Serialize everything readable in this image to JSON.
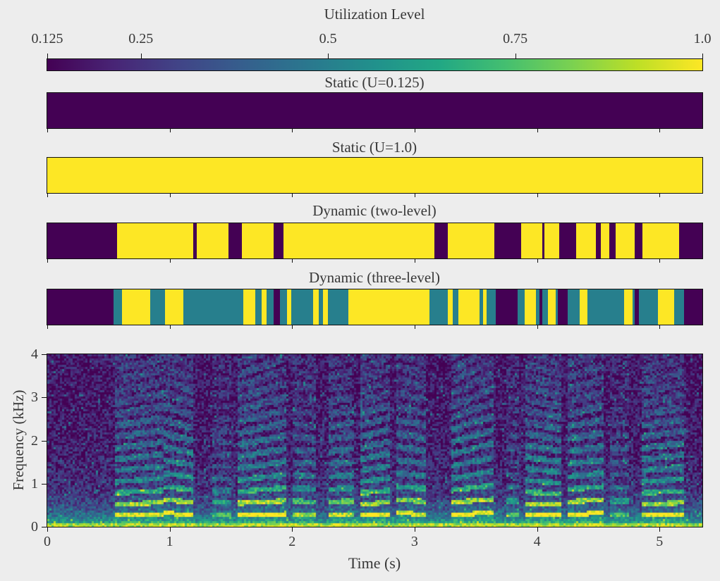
{
  "figure": {
    "background": "#ededed"
  },
  "colors": {
    "background": "#ededed",
    "spine": "#111111",
    "text": "#383838",
    "level_low": "#440154",
    "level_mid": "#27808e",
    "level_high": "#fde725",
    "viridis": [
      "#440154",
      "#482475",
      "#414487",
      "#355f8d",
      "#2a788e",
      "#21918c",
      "#22a884",
      "#44bf70",
      "#7ad151",
      "#bddf26",
      "#fde725"
    ]
  },
  "colorbar": {
    "title": "Utilization Level",
    "vmin": 0.125,
    "vmax": 1.0,
    "colormap": "viridis",
    "ticks": [
      {
        "v": 0.125,
        "label": "0.125"
      },
      {
        "v": 0.25,
        "label": "0.25"
      },
      {
        "v": 0.5,
        "label": "0.5"
      },
      {
        "v": 0.75,
        "label": "0.75"
      },
      {
        "v": 1.0,
        "label": "1.0"
      }
    ]
  },
  "time_axis": {
    "t_max": 5.35,
    "ticks": [
      0,
      1,
      2,
      3,
      4,
      5
    ]
  },
  "spectrogram": {
    "xlabel": "Time (s)",
    "ylabel": "Frequency (kHz)",
    "x_tick_labels": [
      "0",
      "1",
      "2",
      "3",
      "4",
      "5"
    ],
    "y_tick_labels": [
      "0",
      "1",
      "2",
      "3",
      "4"
    ],
    "f_max_khz": 4,
    "activity_bursts": [
      {
        "t0": 0.55,
        "t1": 0.95,
        "pitch": 0.26,
        "slope": 0.05,
        "strength": 0.9
      },
      {
        "t0": 0.95,
        "t1": 1.2,
        "pitch": 0.31,
        "slope": -0.1,
        "strength": 1.0
      },
      {
        "t0": 1.35,
        "t1": 1.5,
        "pitch": 0.28,
        "slope": 0.0,
        "strength": 0.5
      },
      {
        "t0": 1.55,
        "t1": 1.95,
        "pitch": 0.27,
        "slope": 0.08,
        "strength": 1.0
      },
      {
        "t0": 2.0,
        "t1": 2.2,
        "pitch": 0.3,
        "slope": -0.05,
        "strength": 0.7
      },
      {
        "t0": 2.3,
        "t1": 2.5,
        "pitch": 0.29,
        "slope": 0.05,
        "strength": 0.8
      },
      {
        "t0": 2.55,
        "t1": 2.8,
        "pitch": 0.26,
        "slope": 0.09,
        "strength": 0.95
      },
      {
        "t0": 2.85,
        "t1": 3.1,
        "pitch": 0.31,
        "slope": -0.07,
        "strength": 0.9
      },
      {
        "t0": 3.3,
        "t1": 3.65,
        "pitch": 0.28,
        "slope": 0.12,
        "strength": 1.0
      },
      {
        "t0": 3.75,
        "t1": 3.85,
        "pitch": 0.3,
        "slope": 0.0,
        "strength": 0.5
      },
      {
        "t0": 3.9,
        "t1": 4.2,
        "pitch": 0.27,
        "slope": -0.06,
        "strength": 0.95
      },
      {
        "t0": 4.25,
        "t1": 4.55,
        "pitch": 0.29,
        "slope": 0.07,
        "strength": 1.0
      },
      {
        "t0": 4.6,
        "t1": 4.75,
        "pitch": 0.3,
        "slope": 0.0,
        "strength": 0.5
      },
      {
        "t0": 4.85,
        "t1": 5.2,
        "pitch": 0.26,
        "slope": 0.05,
        "strength": 0.9
      }
    ]
  },
  "chart_data": [
    {
      "type": "heatmap",
      "role": "colorbar-scale",
      "title": "Utilization Level",
      "tick_values": [
        0.125,
        0.25,
        0.5,
        0.75,
        1.0
      ],
      "range": [
        0.125,
        1.0
      ],
      "colormap": "viridis",
      "legend_position": "top"
    },
    {
      "type": "heatmap",
      "role": "utilization-strip",
      "title": "Static (U=0.125)",
      "x_range": [
        0,
        5.35
      ],
      "segments": [
        [
          0,
          5.35,
          0.125
        ]
      ]
    },
    {
      "type": "heatmap",
      "role": "utilization-strip",
      "title": "Static (U=1.0)",
      "x_range": [
        0,
        5.35
      ],
      "segments": [
        [
          0,
          5.35,
          1.0
        ]
      ]
    },
    {
      "type": "heatmap",
      "role": "utilization-strip",
      "title": "Dynamic (two-level)",
      "x_range": [
        0,
        5.35
      ],
      "segments": [
        [
          0,
          0.57,
          0.125
        ],
        [
          0.57,
          1.19,
          1.0
        ],
        [
          1.19,
          1.22,
          0.125
        ],
        [
          1.22,
          1.48,
          1.0
        ],
        [
          1.48,
          1.59,
          0.125
        ],
        [
          1.59,
          1.85,
          1.0
        ],
        [
          1.85,
          1.93,
          0.125
        ],
        [
          1.93,
          3.16,
          1.0
        ],
        [
          3.16,
          3.27,
          0.125
        ],
        [
          3.27,
          3.65,
          1.0
        ],
        [
          3.65,
          3.87,
          0.125
        ],
        [
          3.87,
          4.04,
          1.0
        ],
        [
          4.04,
          4.06,
          0.125
        ],
        [
          4.06,
          4.18,
          1.0
        ],
        [
          4.18,
          4.32,
          0.125
        ],
        [
          4.32,
          4.48,
          1.0
        ],
        [
          4.48,
          4.52,
          0.125
        ],
        [
          4.52,
          4.59,
          1.0
        ],
        [
          4.59,
          4.64,
          0.125
        ],
        [
          4.64,
          4.8,
          1.0
        ],
        [
          4.8,
          4.86,
          0.125
        ],
        [
          4.86,
          5.16,
          1.0
        ],
        [
          5.16,
          5.35,
          0.125
        ]
      ]
    },
    {
      "type": "heatmap",
      "role": "utilization-strip",
      "title": "Dynamic (three-level)",
      "x_range": [
        0,
        5.35
      ],
      "segments": [
        [
          0,
          0.54,
          0.125
        ],
        [
          0.54,
          0.61,
          0.5
        ],
        [
          0.61,
          0.84,
          1.0
        ],
        [
          0.84,
          0.96,
          0.5
        ],
        [
          0.96,
          1.11,
          1.0
        ],
        [
          1.11,
          1.6,
          0.5
        ],
        [
          1.6,
          1.7,
          1.0
        ],
        [
          1.7,
          1.75,
          0.5
        ],
        [
          1.75,
          1.79,
          1.0
        ],
        [
          1.79,
          1.85,
          0.5
        ],
        [
          1.85,
          1.9,
          0.125
        ],
        [
          1.9,
          1.96,
          0.5
        ],
        [
          1.96,
          1.99,
          1.0
        ],
        [
          1.99,
          2.17,
          0.5
        ],
        [
          2.17,
          2.22,
          1.0
        ],
        [
          2.22,
          2.25,
          0.5
        ],
        [
          2.25,
          2.29,
          1.0
        ],
        [
          2.29,
          2.46,
          0.5
        ],
        [
          2.46,
          3.12,
          1.0
        ],
        [
          3.12,
          3.27,
          0.5
        ],
        [
          3.27,
          3.31,
          1.0
        ],
        [
          3.31,
          3.36,
          0.5
        ],
        [
          3.36,
          3.53,
          1.0
        ],
        [
          3.53,
          3.56,
          0.5
        ],
        [
          3.56,
          3.59,
          1.0
        ],
        [
          3.59,
          3.66,
          0.5
        ],
        [
          3.66,
          3.84,
          0.125
        ],
        [
          3.84,
          3.9,
          0.5
        ],
        [
          3.9,
          3.99,
          1.0
        ],
        [
          3.99,
          4.02,
          0.5
        ],
        [
          4.02,
          4.04,
          0.125
        ],
        [
          4.04,
          4.09,
          0.5
        ],
        [
          4.09,
          4.15,
          1.0
        ],
        [
          4.15,
          4.17,
          0.5
        ],
        [
          4.17,
          4.25,
          0.125
        ],
        [
          4.25,
          4.35,
          0.5
        ],
        [
          4.35,
          4.41,
          1.0
        ],
        [
          4.41,
          4.71,
          0.5
        ],
        [
          4.71,
          4.78,
          1.0
        ],
        [
          4.78,
          4.8,
          0.5
        ],
        [
          4.8,
          4.83,
          0.125
        ],
        [
          4.83,
          4.99,
          0.5
        ],
        [
          4.99,
          5.12,
          1.0
        ],
        [
          5.12,
          5.2,
          0.5
        ],
        [
          5.2,
          5.35,
          0.125
        ]
      ]
    },
    {
      "type": "heatmap",
      "role": "spectrogram",
      "title": "",
      "xlabel": "Time (s)",
      "ylabel": "Frequency (kHz)",
      "x_ticks": [
        0,
        1,
        2,
        3,
        4,
        5
      ],
      "y_ticks": [
        0,
        1,
        2,
        3,
        4
      ],
      "x_range": [
        0,
        5.35
      ],
      "y_range": [
        0,
        4
      ],
      "colormap": "viridis"
    }
  ]
}
